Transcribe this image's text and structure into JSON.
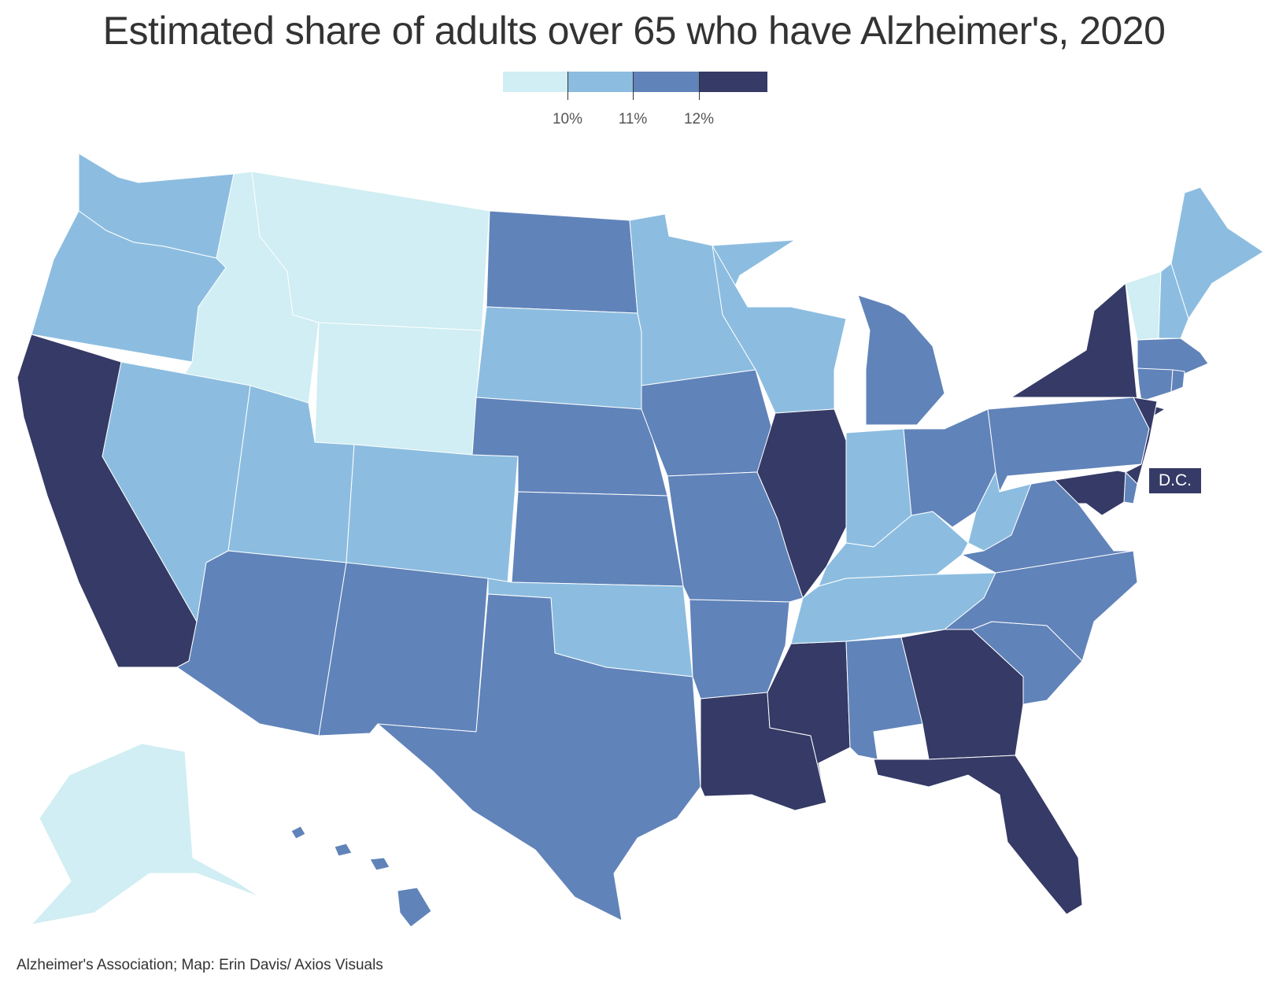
{
  "title": "Estimated share of adults over 65 who have Alzheimer's, 2020",
  "legend": {
    "bins": [
      {
        "label": "",
        "color": "#d0eef3"
      },
      {
        "label": "10%",
        "color": "#8cbde0"
      },
      {
        "label": "11%",
        "color": "#6083b9"
      },
      {
        "label": "12%",
        "color": "#353a66"
      }
    ]
  },
  "dc_label": "D.C.",
  "source": "Alzheimer's Association; Map: Erin Davis/ Axios Visuals",
  "chart_data": {
    "type": "choropleth",
    "title": "Estimated share of adults over 65 who have Alzheimer's, 2020",
    "thresholds": [
      "10%",
      "11%",
      "12%"
    ],
    "bin_colors": [
      "#d0eef3",
      "#8cbde0",
      "#6083b9",
      "#353a66"
    ],
    "bins_by_state": {
      "WA": 1,
      "OR": 1,
      "CA": 3,
      "ID": 0,
      "NV": 1,
      "MT": 0,
      "WY": 0,
      "UT": 1,
      "AZ": 2,
      "CO": 1,
      "NM": 2,
      "ND": 2,
      "SD": 1,
      "NE": 2,
      "KS": 2,
      "OK": 1,
      "TX": 2,
      "MN": 1,
      "IA": 2,
      "MO": 2,
      "AR": 2,
      "LA": 3,
      "WI": 1,
      "IL": 3,
      "MS": 3,
      "MI": 2,
      "IN": 1,
      "KY": 1,
      "TN": 1,
      "AL": 2,
      "OH": 2,
      "WV": 1,
      "GA": 3,
      "FL": 3,
      "SC": 2,
      "NC": 2,
      "VA": 2,
      "PA": 2,
      "NY": 3,
      "VT": 0,
      "NH": 1,
      "ME": 1,
      "MA": 2,
      "CT": 2,
      "RI": 2,
      "NJ": 3,
      "DE": 2,
      "MD": 3,
      "DC": 3,
      "AK": 0,
      "HI": 2
    }
  }
}
